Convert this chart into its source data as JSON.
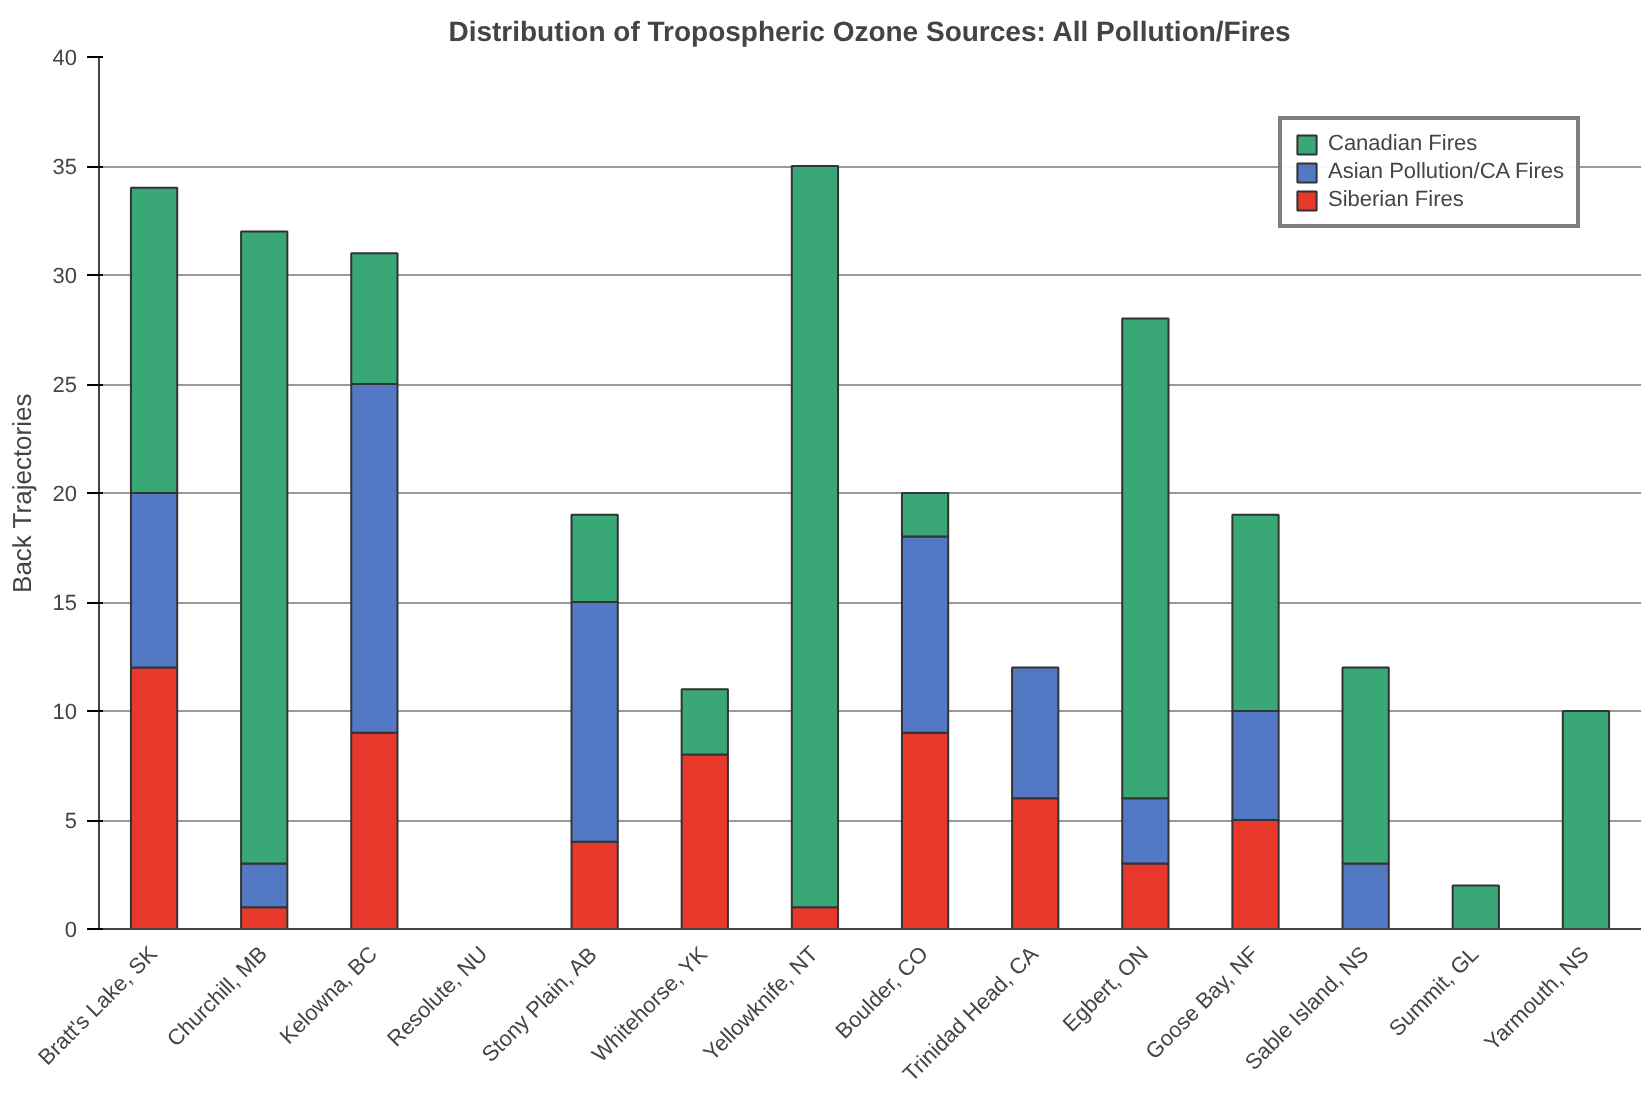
{
  "chart_data": {
    "type": "bar",
    "stacked": true,
    "title": "Distribution of Tropospheric Ozone Sources: All Pollution/Fires",
    "ylabel": "Back Trajectories",
    "categories": [
      "Bratt's Lake, SK",
      "Churchill, MB",
      "Kelowna, BC",
      "Resolute, NU",
      "Stony Plain, AB",
      "Whitehorse, YK",
      "Yellowknife, NT",
      "Boulder, CO",
      "Trinidad Head, CA",
      "Egbert, ON",
      "Goose Bay, NF",
      "Sable Island, NS",
      "Summit, GL",
      "Yarmouth, NS"
    ],
    "series": [
      {
        "name": "Siberian Fires",
        "color": "#e8382b",
        "values": [
          12,
          1,
          9,
          0,
          4,
          8,
          1,
          9,
          6,
          3,
          5,
          0,
          0,
          0
        ]
      },
      {
        "name": "Asian Pollution/CA Fires",
        "color": "#5479c4",
        "values": [
          8,
          2,
          16,
          0,
          11,
          0,
          0,
          9,
          6,
          3,
          5,
          3,
          0,
          0
        ]
      },
      {
        "name": "Canadian Fires",
        "color": "#3aa876",
        "values": [
          14,
          29,
          6,
          0,
          4,
          3,
          34,
          2,
          0,
          22,
          9,
          9,
          2,
          10
        ]
      }
    ],
    "ylim": [
      0,
      40
    ],
    "yticks": [
      0,
      5,
      10,
      15,
      20,
      25,
      30,
      35,
      40
    ],
    "grid": "y",
    "legend": "top right"
  }
}
